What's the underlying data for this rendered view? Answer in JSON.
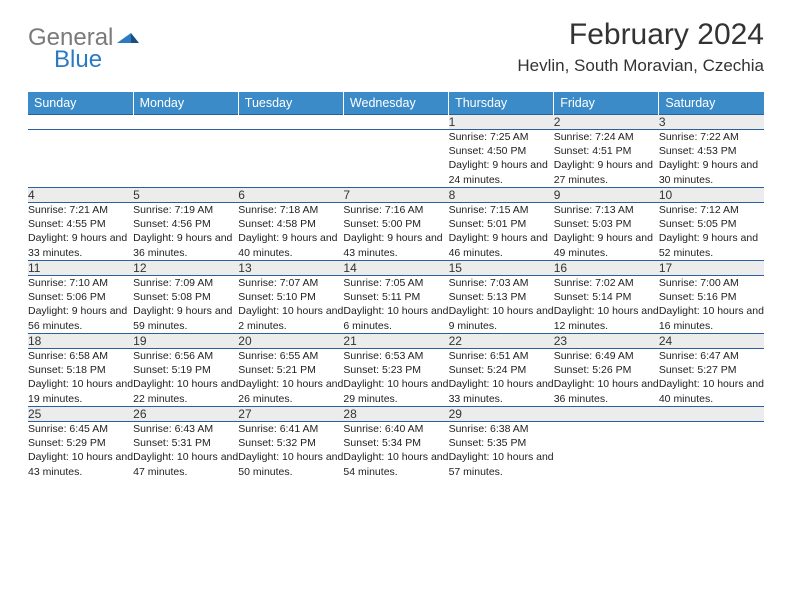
{
  "logo": {
    "text1": "General",
    "text2": "Blue"
  },
  "title": "February 2024",
  "location": "Hevlin, South Moravian, Czechia",
  "colors": {
    "header_bg": "#3b8bc9",
    "header_text": "#ffffff",
    "daynum_bg": "#ececec",
    "row_border": "#2860a0",
    "logo_gray": "#7a7a7a",
    "logo_blue": "#2b7ac2"
  },
  "weekdays": [
    "Sunday",
    "Monday",
    "Tuesday",
    "Wednesday",
    "Thursday",
    "Friday",
    "Saturday"
  ],
  "weeks": [
    [
      null,
      null,
      null,
      null,
      {
        "n": "1",
        "sr": "7:25 AM",
        "ss": "4:50 PM",
        "dl": "9 hours and 24 minutes."
      },
      {
        "n": "2",
        "sr": "7:24 AM",
        "ss": "4:51 PM",
        "dl": "9 hours and 27 minutes."
      },
      {
        "n": "3",
        "sr": "7:22 AM",
        "ss": "4:53 PM",
        "dl": "9 hours and 30 minutes."
      }
    ],
    [
      {
        "n": "4",
        "sr": "7:21 AM",
        "ss": "4:55 PM",
        "dl": "9 hours and 33 minutes."
      },
      {
        "n": "5",
        "sr": "7:19 AM",
        "ss": "4:56 PM",
        "dl": "9 hours and 36 minutes."
      },
      {
        "n": "6",
        "sr": "7:18 AM",
        "ss": "4:58 PM",
        "dl": "9 hours and 40 minutes."
      },
      {
        "n": "7",
        "sr": "7:16 AM",
        "ss": "5:00 PM",
        "dl": "9 hours and 43 minutes."
      },
      {
        "n": "8",
        "sr": "7:15 AM",
        "ss": "5:01 PM",
        "dl": "9 hours and 46 minutes."
      },
      {
        "n": "9",
        "sr": "7:13 AM",
        "ss": "5:03 PM",
        "dl": "9 hours and 49 minutes."
      },
      {
        "n": "10",
        "sr": "7:12 AM",
        "ss": "5:05 PM",
        "dl": "9 hours and 52 minutes."
      }
    ],
    [
      {
        "n": "11",
        "sr": "7:10 AM",
        "ss": "5:06 PM",
        "dl": "9 hours and 56 minutes."
      },
      {
        "n": "12",
        "sr": "7:09 AM",
        "ss": "5:08 PM",
        "dl": "9 hours and 59 minutes."
      },
      {
        "n": "13",
        "sr": "7:07 AM",
        "ss": "5:10 PM",
        "dl": "10 hours and 2 minutes."
      },
      {
        "n": "14",
        "sr": "7:05 AM",
        "ss": "5:11 PM",
        "dl": "10 hours and 6 minutes."
      },
      {
        "n": "15",
        "sr": "7:03 AM",
        "ss": "5:13 PM",
        "dl": "10 hours and 9 minutes."
      },
      {
        "n": "16",
        "sr": "7:02 AM",
        "ss": "5:14 PM",
        "dl": "10 hours and 12 minutes."
      },
      {
        "n": "17",
        "sr": "7:00 AM",
        "ss": "5:16 PM",
        "dl": "10 hours and 16 minutes."
      }
    ],
    [
      {
        "n": "18",
        "sr": "6:58 AM",
        "ss": "5:18 PM",
        "dl": "10 hours and 19 minutes."
      },
      {
        "n": "19",
        "sr": "6:56 AM",
        "ss": "5:19 PM",
        "dl": "10 hours and 22 minutes."
      },
      {
        "n": "20",
        "sr": "6:55 AM",
        "ss": "5:21 PM",
        "dl": "10 hours and 26 minutes."
      },
      {
        "n": "21",
        "sr": "6:53 AM",
        "ss": "5:23 PM",
        "dl": "10 hours and 29 minutes."
      },
      {
        "n": "22",
        "sr": "6:51 AM",
        "ss": "5:24 PM",
        "dl": "10 hours and 33 minutes."
      },
      {
        "n": "23",
        "sr": "6:49 AM",
        "ss": "5:26 PM",
        "dl": "10 hours and 36 minutes."
      },
      {
        "n": "24",
        "sr": "6:47 AM",
        "ss": "5:27 PM",
        "dl": "10 hours and 40 minutes."
      }
    ],
    [
      {
        "n": "25",
        "sr": "6:45 AM",
        "ss": "5:29 PM",
        "dl": "10 hours and 43 minutes."
      },
      {
        "n": "26",
        "sr": "6:43 AM",
        "ss": "5:31 PM",
        "dl": "10 hours and 47 minutes."
      },
      {
        "n": "27",
        "sr": "6:41 AM",
        "ss": "5:32 PM",
        "dl": "10 hours and 50 minutes."
      },
      {
        "n": "28",
        "sr": "6:40 AM",
        "ss": "5:34 PM",
        "dl": "10 hours and 54 minutes."
      },
      {
        "n": "29",
        "sr": "6:38 AM",
        "ss": "5:35 PM",
        "dl": "10 hours and 57 minutes."
      },
      null,
      null
    ]
  ],
  "labels": {
    "sunrise": "Sunrise: ",
    "sunset": "Sunset: ",
    "daylight": "Daylight: "
  }
}
